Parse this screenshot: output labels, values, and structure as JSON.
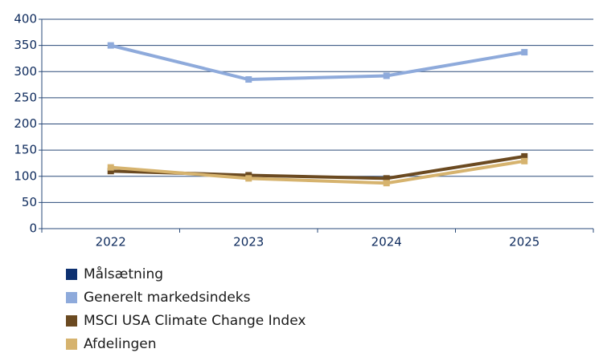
{
  "chart_data": {
    "type": "line",
    "categories": [
      "2022",
      "2023",
      "2024",
      "2025"
    ],
    "series": [
      {
        "name": "Målsætning",
        "color": "#0d3070",
        "values": [
          null,
          null,
          null,
          null
        ]
      },
      {
        "name": "Generelt markedsindeks",
        "color": "#8eaadb",
        "values": [
          350,
          285,
          292,
          337
        ]
      },
      {
        "name": "MSCI USA Climate Change Index",
        "color": "#6b4a21",
        "values": [
          110,
          102,
          96,
          138
        ]
      },
      {
        "name": "Afdelingen",
        "color": "#d6b36e",
        "values": [
          117,
          96,
          87,
          129
        ]
      }
    ],
    "ylim": [
      0,
      400
    ],
    "yticks": [
      0,
      50,
      100,
      150,
      200,
      250,
      300,
      350,
      400
    ],
    "grid": true
  }
}
